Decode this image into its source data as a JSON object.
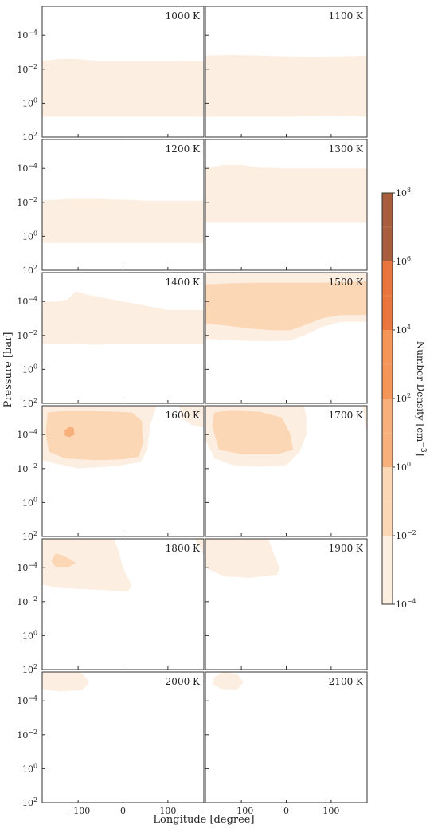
{
  "chart_data": {
    "type": "contour",
    "xlabel": "Longitude [degree]",
    "ylabel": "Pressure [bar]",
    "x_ticks": [
      "−100",
      "0",
      "100"
    ],
    "x_tick_values": [
      -100,
      0,
      100
    ],
    "xlim": [
      -180,
      180
    ],
    "y_ticks": [
      "10^{-4}",
      "10^{-2}",
      "10^{0}",
      "10^{2}"
    ],
    "y_tick_values": [
      -4,
      -2,
      0,
      2
    ],
    "ylim_log10_bar": [
      -5.7,
      2
    ],
    "y_inverted": true,
    "colorbar": {
      "label": "Number Density [cm^{-3}]",
      "tick_labels": [
        "10^{-4}",
        "10^{-2}",
        "10^{0}",
        "10^{2}",
        "10^{4}",
        "10^{6}",
        "10^{8}"
      ],
      "levels_log10": [
        -4,
        -2,
        0,
        2,
        4,
        6,
        8
      ],
      "colors": [
        "#fdeee2",
        "#fcd7b5",
        "#f7b07b",
        "#f4955a",
        "#e9763e",
        "#cf6332",
        "#a85d3c"
      ]
    },
    "panels": [
      {
        "temp": "1000 K",
        "regions": [
          {
            "level": 0,
            "top": [
              [
                -180,
                -2.5
              ],
              [
                -140,
                -2.6
              ],
              [
                -100,
                -2.6
              ],
              [
                -60,
                -2.5
              ],
              [
                0,
                -2.5
              ],
              [
                60,
                -2.5
              ],
              [
                120,
                -2.5
              ],
              [
                180,
                -2.45
              ]
            ],
            "bottom": [
              [
                -180,
                0.8
              ],
              [
                -100,
                0.8
              ],
              [
                0,
                0.8
              ],
              [
                100,
                0.8
              ],
              [
                180,
                0.8
              ]
            ]
          }
        ]
      },
      {
        "temp": "1100 K",
        "regions": [
          {
            "level": 0,
            "top": [
              [
                -180,
                -2.8
              ],
              [
                -120,
                -2.85
              ],
              [
                -60,
                -2.8
              ],
              [
                0,
                -2.75
              ],
              [
                60,
                -2.7
              ],
              [
                120,
                -2.75
              ],
              [
                180,
                -2.8
              ]
            ],
            "bottom": [
              [
                -180,
                0.8
              ],
              [
                -100,
                0.8
              ],
              [
                0,
                0.8
              ],
              [
                100,
                0.75
              ],
              [
                180,
                0.8
              ]
            ]
          }
        ]
      },
      {
        "temp": "1200 K",
        "regions": [
          {
            "level": 0,
            "top": [
              [
                -180,
                -2.1
              ],
              [
                -120,
                -2.2
              ],
              [
                -60,
                -2.2
              ],
              [
                0,
                -2.15
              ],
              [
                60,
                -2.1
              ],
              [
                120,
                -2.1
              ],
              [
                180,
                -2.1
              ]
            ],
            "bottom": [
              [
                -180,
                0.4
              ],
              [
                -100,
                0.4
              ],
              [
                0,
                0.4
              ],
              [
                100,
                0.4
              ],
              [
                180,
                0.4
              ]
            ]
          }
        ]
      },
      {
        "temp": "1300 K",
        "regions": [
          {
            "level": 0,
            "top": [
              [
                -180,
                -4.0
              ],
              [
                -140,
                -4.2
              ],
              [
                -100,
                -4.2
              ],
              [
                -60,
                -4.05
              ],
              [
                0,
                -4.0
              ],
              [
                60,
                -4.0
              ],
              [
                120,
                -4.0
              ],
              [
                180,
                -4.0
              ]
            ],
            "bottom": [
              [
                -180,
                -0.8
              ],
              [
                -100,
                -0.8
              ],
              [
                0,
                -0.8
              ],
              [
                100,
                -0.8
              ],
              [
                180,
                -0.8
              ]
            ]
          }
        ]
      },
      {
        "temp": "1400 K",
        "regions": [
          {
            "level": 0,
            "top": [
              [
                -180,
                -4.0
              ],
              [
                -150,
                -4.0
              ],
              [
                -125,
                -4.1
              ],
              [
                -105,
                -4.6
              ],
              [
                -80,
                -4.4
              ],
              [
                -40,
                -4.2
              ],
              [
                0,
                -4.0
              ],
              [
                60,
                -3.7
              ],
              [
                100,
                -3.5
              ],
              [
                140,
                -3.5
              ],
              [
                180,
                -3.5
              ]
            ],
            "bottom": [
              [
                -180,
                -1.5
              ],
              [
                -120,
                -1.5
              ],
              [
                -60,
                -1.45
              ],
              [
                0,
                -1.5
              ],
              [
                60,
                -1.5
              ],
              [
                120,
                -1.5
              ],
              [
                180,
                -1.5
              ]
            ]
          }
        ]
      },
      {
        "temp": "1500 K",
        "regions": [
          {
            "level": 0,
            "top": [
              [
                -180,
                -5.7
              ],
              [
                180,
                -5.7
              ]
            ],
            "bottom": [
              [
                -180,
                -1.8
              ],
              [
                -140,
                -1.75
              ],
              [
                -100,
                -1.7
              ],
              [
                -40,
                -1.65
              ],
              [
                10,
                -1.7
              ],
              [
                40,
                -2.0
              ],
              [
                80,
                -2.5
              ],
              [
                120,
                -2.8
              ],
              [
                160,
                -2.8
              ],
              [
                180,
                -2.8
              ]
            ]
          },
          {
            "level": 1,
            "top": [
              [
                -180,
                -5.0
              ],
              [
                -140,
                -5.05
              ],
              [
                -80,
                -5.1
              ],
              [
                0,
                -5.1
              ],
              [
                80,
                -5.1
              ],
              [
                140,
                -5.15
              ],
              [
                180,
                -5.2
              ]
            ],
            "bottom": [
              [
                -180,
                -2.7
              ],
              [
                -140,
                -2.6
              ],
              [
                -80,
                -2.4
              ],
              [
                -30,
                -2.3
              ],
              [
                10,
                -2.3
              ],
              [
                40,
                -2.6
              ],
              [
                80,
                -3.0
              ],
              [
                120,
                -3.2
              ],
              [
                180,
                -3.2
              ]
            ]
          }
        ]
      },
      {
        "temp": "1600 K",
        "regions": [
          {
            "level": 0,
            "polygon": [
              [
                -180,
                -5.7
              ],
              [
                -180,
                -2.5
              ],
              [
                -150,
                -2.3
              ],
              [
                -100,
                -2.0
              ],
              [
                -40,
                -2.1
              ],
              [
                0,
                -2.2
              ],
              [
                40,
                -2.4
              ],
              [
                55,
                -3.2
              ],
              [
                60,
                -4.5
              ],
              [
                75,
                -5.7
              ]
            ]
          },
          {
            "level": 0,
            "polygon": [
              [
                125,
                -5.7
              ],
              [
                130,
                -5.0
              ],
              [
                150,
                -4.6
              ],
              [
                180,
                -4.4
              ],
              [
                180,
                -5.7
              ]
            ]
          },
          {
            "level": 1,
            "polygon": [
              [
                -168,
                -5.3
              ],
              [
                -130,
                -5.4
              ],
              [
                -60,
                -5.4
              ],
              [
                20,
                -5.3
              ],
              [
                42,
                -4.8
              ],
              [
                45,
                -3.5
              ],
              [
                35,
                -2.7
              ],
              [
                0,
                -2.55
              ],
              [
                -60,
                -2.5
              ],
              [
                -130,
                -2.6
              ],
              [
                -165,
                -3.0
              ],
              [
                -172,
                -4.0
              ]
            ]
          },
          {
            "level": 2,
            "polygon": [
              [
                -130,
                -4.25
              ],
              [
                -120,
                -4.45
              ],
              [
                -110,
                -4.4
              ],
              [
                -108,
                -4.0
              ],
              [
                -120,
                -3.85
              ],
              [
                -130,
                -3.95
              ]
            ]
          }
        ]
      },
      {
        "temp": "1700 K",
        "regions": [
          {
            "level": 0,
            "polygon": [
              [
                -180,
                -5.7
              ],
              [
                -180,
                -3.7
              ],
              [
                -160,
                -2.6
              ],
              [
                -120,
                -2.2
              ],
              [
                -60,
                -2.1
              ],
              [
                0,
                -2.2
              ],
              [
                30,
                -3.0
              ],
              [
                45,
                -4.0
              ],
              [
                45,
                -5.0
              ],
              [
                40,
                -5.7
              ]
            ]
          },
          {
            "level": 0,
            "polygon": [
              [
                170,
                -5.7
              ],
              [
                180,
                -4.0
              ],
              [
                180,
                -5.7
              ]
            ]
          },
          {
            "level": 1,
            "polygon": [
              [
                -160,
                -5.3
              ],
              [
                -120,
                -5.45
              ],
              [
                -60,
                -5.35
              ],
              [
                -10,
                -5.0
              ],
              [
                10,
                -4.0
              ],
              [
                15,
                -3.1
              ],
              [
                -20,
                -2.85
              ],
              [
                -100,
                -2.85
              ],
              [
                -150,
                -3.1
              ],
              [
                -165,
                -4.5
              ]
            ]
          }
        ]
      },
      {
        "temp": "1800 K",
        "regions": [
          {
            "level": 0,
            "polygon": [
              [
                -180,
                -5.7
              ],
              [
                -180,
                -3.0
              ],
              [
                -140,
                -2.8
              ],
              [
                -60,
                -2.7
              ],
              [
                10,
                -2.6
              ],
              [
                20,
                -2.9
              ],
              [
                0,
                -4.0
              ],
              [
                -10,
                -5.0
              ],
              [
                -20,
                -5.7
              ]
            ]
          },
          {
            "level": 0,
            "polygon": [
              [
                160,
                -5.7
              ],
              [
                180,
                -4.8
              ],
              [
                180,
                -5.7
              ]
            ]
          },
          {
            "level": 1,
            "polygon": [
              [
                -160,
                -4.4
              ],
              [
                -150,
                -4.85
              ],
              [
                -132,
                -4.7
              ],
              [
                -105,
                -4.3
              ],
              [
                -120,
                -4.05
              ],
              [
                -150,
                -4.05
              ]
            ]
          }
        ]
      },
      {
        "temp": "1900 K",
        "regions": [
          {
            "level": 0,
            "polygon": [
              [
                -180,
                -5.7
              ],
              [
                -180,
                -4.0
              ],
              [
                -140,
                -3.5
              ],
              [
                -80,
                -3.4
              ],
              [
                -20,
                -3.6
              ],
              [
                -15,
                -4.0
              ],
              [
                -30,
                -5.0
              ],
              [
                -40,
                -5.7
              ]
            ]
          }
        ]
      },
      {
        "temp": "2000 K",
        "regions": [
          {
            "level": 0,
            "polygon": [
              [
                -180,
                -5.7
              ],
              [
                -180,
                -4.7
              ],
              [
                -140,
                -4.55
              ],
              [
                -90,
                -4.65
              ],
              [
                -75,
                -5.1
              ],
              [
                -90,
                -5.6
              ],
              [
                -100,
                -5.7
              ]
            ]
          }
        ]
      },
      {
        "temp": "2100 K",
        "regions": [
          {
            "level": 0,
            "polygon": [
              [
                -160,
                -5.4
              ],
              [
                -140,
                -5.7
              ],
              [
                -110,
                -5.6
              ],
              [
                -95,
                -5.1
              ],
              [
                -110,
                -4.65
              ],
              [
                -145,
                -4.7
              ],
              [
                -165,
                -5.0
              ]
            ]
          }
        ]
      }
    ]
  }
}
